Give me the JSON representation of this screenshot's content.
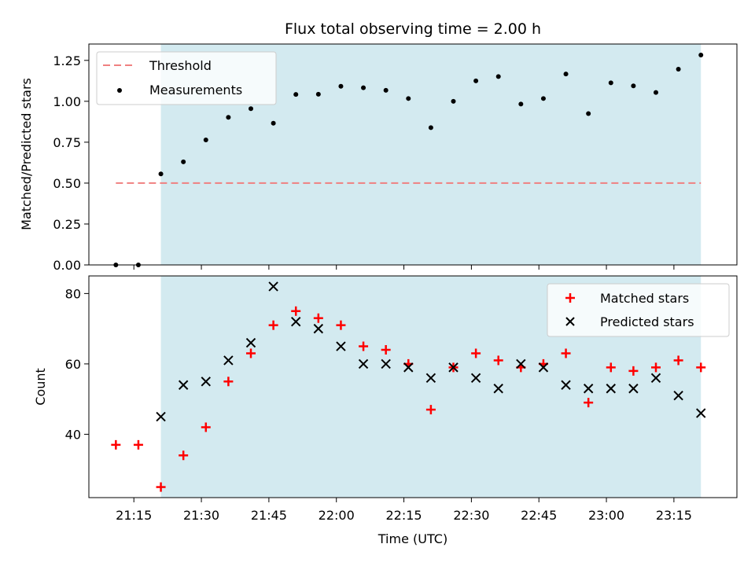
{
  "chart_data": [
    {
      "type": "scatter",
      "title": "Flux total observing time = 2.00 h",
      "xlabel": "",
      "ylabel": "Matched/Predicted stars",
      "ylim": [
        0,
        1.35
      ],
      "yticks": [
        "0.00",
        "0.25",
        "0.50",
        "0.75",
        "1.00",
        "1.25"
      ],
      "ytick_values": [
        0,
        0.25,
        0.5,
        0.75,
        1.0,
        1.25
      ],
      "shaded_region": {
        "start": "21:21",
        "end": "23:21",
        "color": "#d3eaf0"
      },
      "threshold": {
        "name": "Threshold",
        "value": 0.5,
        "start": "21:11",
        "end": "23:21",
        "color": "#f08080"
      },
      "legend": {
        "placement": "upper-left",
        "entries": [
          "Threshold",
          "Measurements"
        ]
      },
      "series": [
        {
          "name": "Measurements",
          "marker": "dot",
          "color": "#000000",
          "x": [
            "21:11",
            "21:16",
            "21:21",
            "21:26",
            "21:31",
            "21:36",
            "21:41",
            "21:46",
            "21:51",
            "21:56",
            "22:01",
            "22:06",
            "22:11",
            "22:16",
            "22:21",
            "22:26",
            "22:31",
            "22:36",
            "22:41",
            "22:46",
            "22:51",
            "22:56",
            "23:01",
            "23:06",
            "23:11",
            "23:16",
            "23:21"
          ],
          "values": [
            0.0,
            0.0,
            0.556,
            0.63,
            0.764,
            0.902,
            0.955,
            0.866,
            1.042,
            1.043,
            1.092,
            1.083,
            1.067,
            1.017,
            0.839,
            1.0,
            1.125,
            1.151,
            0.983,
            1.017,
            1.167,
            0.925,
            1.113,
            1.094,
            1.054,
            1.196,
            1.283
          ]
        }
      ]
    },
    {
      "type": "scatter",
      "xlabel": "Time (UTC)",
      "ylabel": "Count",
      "ylim": [
        22,
        85
      ],
      "yticks": [
        "40",
        "60",
        "80"
      ],
      "ytick_values": [
        40,
        60,
        80
      ],
      "xlim": [
        "21:05",
        "23:29"
      ],
      "xticks": [
        "21:15",
        "21:30",
        "21:45",
        "22:00",
        "22:15",
        "22:30",
        "22:45",
        "23:00",
        "23:15"
      ],
      "shaded_region": {
        "start": "21:21",
        "end": "23:21",
        "color": "#d3eaf0"
      },
      "legend": {
        "placement": "upper-right",
        "entries": [
          "Matched stars",
          "Predicted stars"
        ]
      },
      "series": [
        {
          "name": "Matched stars",
          "marker": "plus",
          "color": "#ff0000",
          "x": [
            "21:11",
            "21:16",
            "21:21",
            "21:26",
            "21:31",
            "21:36",
            "21:41",
            "21:46",
            "21:51",
            "21:56",
            "22:01",
            "22:06",
            "22:11",
            "22:16",
            "22:21",
            "22:26",
            "22:31",
            "22:36",
            "22:41",
            "22:46",
            "22:51",
            "22:56",
            "23:01",
            "23:06",
            "23:11",
            "23:16",
            "23:21"
          ],
          "values": [
            37,
            37,
            25,
            34,
            42,
            55,
            63,
            71,
            75,
            73,
            71,
            65,
            64,
            60,
            47,
            59,
            63,
            61,
            59,
            60,
            63,
            49,
            59,
            58,
            59,
            61,
            59
          ]
        },
        {
          "name": "Predicted stars",
          "marker": "x",
          "color": "#000000",
          "x": [
            "21:21",
            "21:26",
            "21:31",
            "21:36",
            "21:41",
            "21:46",
            "21:51",
            "21:56",
            "22:01",
            "22:06",
            "22:11",
            "22:16",
            "22:21",
            "22:26",
            "22:31",
            "22:36",
            "22:41",
            "22:46",
            "22:51",
            "22:56",
            "23:01",
            "23:06",
            "23:11",
            "23:16",
            "23:21"
          ],
          "values": [
            45,
            54,
            55,
            61,
            66,
            82,
            72,
            70,
            65,
            60,
            60,
            59,
            56,
            59,
            56,
            53,
            60,
            59,
            54,
            53,
            53,
            53,
            56,
            51,
            46
          ]
        }
      ]
    }
  ]
}
